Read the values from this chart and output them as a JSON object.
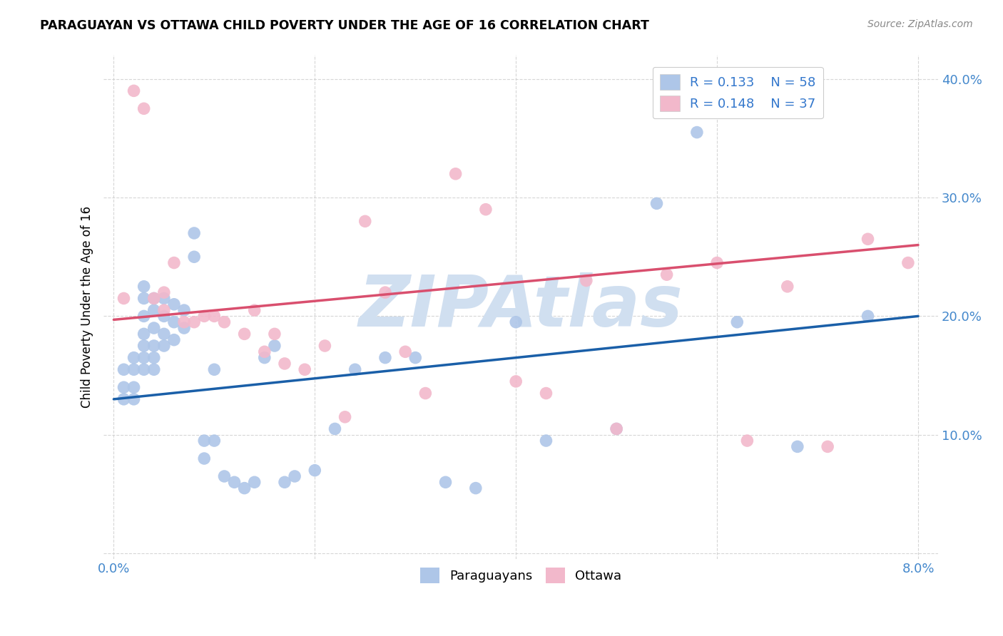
{
  "title": "PARAGUAYAN VS OTTAWA CHILD POVERTY UNDER THE AGE OF 16 CORRELATION CHART",
  "source": "Source: ZipAtlas.com",
  "ylabel": "Child Poverty Under the Age of 16",
  "ylim": [
    -0.005,
    0.42
  ],
  "xlim": [
    -0.001,
    0.082
  ],
  "ytick_values": [
    0.0,
    0.1,
    0.2,
    0.3,
    0.4
  ],
  "xtick_values": [
    0.0,
    0.02,
    0.04,
    0.06,
    0.08
  ],
  "blue_color": "#aec6e8",
  "pink_color": "#f2b8cb",
  "blue_line_color": "#1a5fa8",
  "pink_line_color": "#d94f6e",
  "legend_R1": "0.133",
  "legend_N1": "58",
  "legend_R2": "0.148",
  "legend_N2": "37",
  "watermark": "ZIPAtlas",
  "watermark_color": "#d0dff0",
  "paraguayans_label": "Paraguayans",
  "ottawa_label": "Ottawa",
  "blue_line_x0": 0.0,
  "blue_line_y0": 0.13,
  "blue_line_x1": 0.08,
  "blue_line_y1": 0.2,
  "pink_line_x0": 0.0,
  "pink_line_y0": 0.197,
  "pink_line_x1": 0.08,
  "pink_line_y1": 0.26,
  "blue_x": [
    0.001,
    0.001,
    0.001,
    0.002,
    0.002,
    0.002,
    0.002,
    0.003,
    0.003,
    0.003,
    0.003,
    0.003,
    0.003,
    0.003,
    0.004,
    0.004,
    0.004,
    0.004,
    0.004,
    0.004,
    0.005,
    0.005,
    0.005,
    0.005,
    0.006,
    0.006,
    0.006,
    0.007,
    0.007,
    0.008,
    0.008,
    0.009,
    0.009,
    0.01,
    0.01,
    0.011,
    0.012,
    0.013,
    0.014,
    0.015,
    0.016,
    0.017,
    0.018,
    0.02,
    0.022,
    0.024,
    0.027,
    0.03,
    0.033,
    0.036,
    0.04,
    0.043,
    0.05,
    0.054,
    0.058,
    0.062,
    0.068,
    0.075
  ],
  "blue_y": [
    0.13,
    0.14,
    0.155,
    0.13,
    0.14,
    0.155,
    0.165,
    0.155,
    0.165,
    0.175,
    0.185,
    0.2,
    0.215,
    0.225,
    0.155,
    0.165,
    0.175,
    0.19,
    0.205,
    0.215,
    0.175,
    0.185,
    0.2,
    0.215,
    0.18,
    0.195,
    0.21,
    0.19,
    0.205,
    0.25,
    0.27,
    0.08,
    0.095,
    0.155,
    0.095,
    0.065,
    0.06,
    0.055,
    0.06,
    0.165,
    0.175,
    0.06,
    0.065,
    0.07,
    0.105,
    0.155,
    0.165,
    0.165,
    0.06,
    0.055,
    0.195,
    0.095,
    0.105,
    0.295,
    0.355,
    0.195,
    0.09,
    0.2
  ],
  "pink_x": [
    0.001,
    0.002,
    0.003,
    0.004,
    0.005,
    0.005,
    0.006,
    0.007,
    0.008,
    0.009,
    0.01,
    0.011,
    0.013,
    0.014,
    0.015,
    0.016,
    0.017,
    0.019,
    0.021,
    0.023,
    0.025,
    0.027,
    0.029,
    0.031,
    0.034,
    0.037,
    0.04,
    0.043,
    0.047,
    0.05,
    0.055,
    0.06,
    0.063,
    0.067,
    0.071,
    0.075,
    0.079
  ],
  "pink_y": [
    0.215,
    0.39,
    0.375,
    0.215,
    0.22,
    0.205,
    0.245,
    0.195,
    0.195,
    0.2,
    0.2,
    0.195,
    0.185,
    0.205,
    0.17,
    0.185,
    0.16,
    0.155,
    0.175,
    0.115,
    0.28,
    0.22,
    0.17,
    0.135,
    0.32,
    0.29,
    0.145,
    0.135,
    0.23,
    0.105,
    0.235,
    0.245,
    0.095,
    0.225,
    0.09,
    0.265,
    0.245
  ]
}
